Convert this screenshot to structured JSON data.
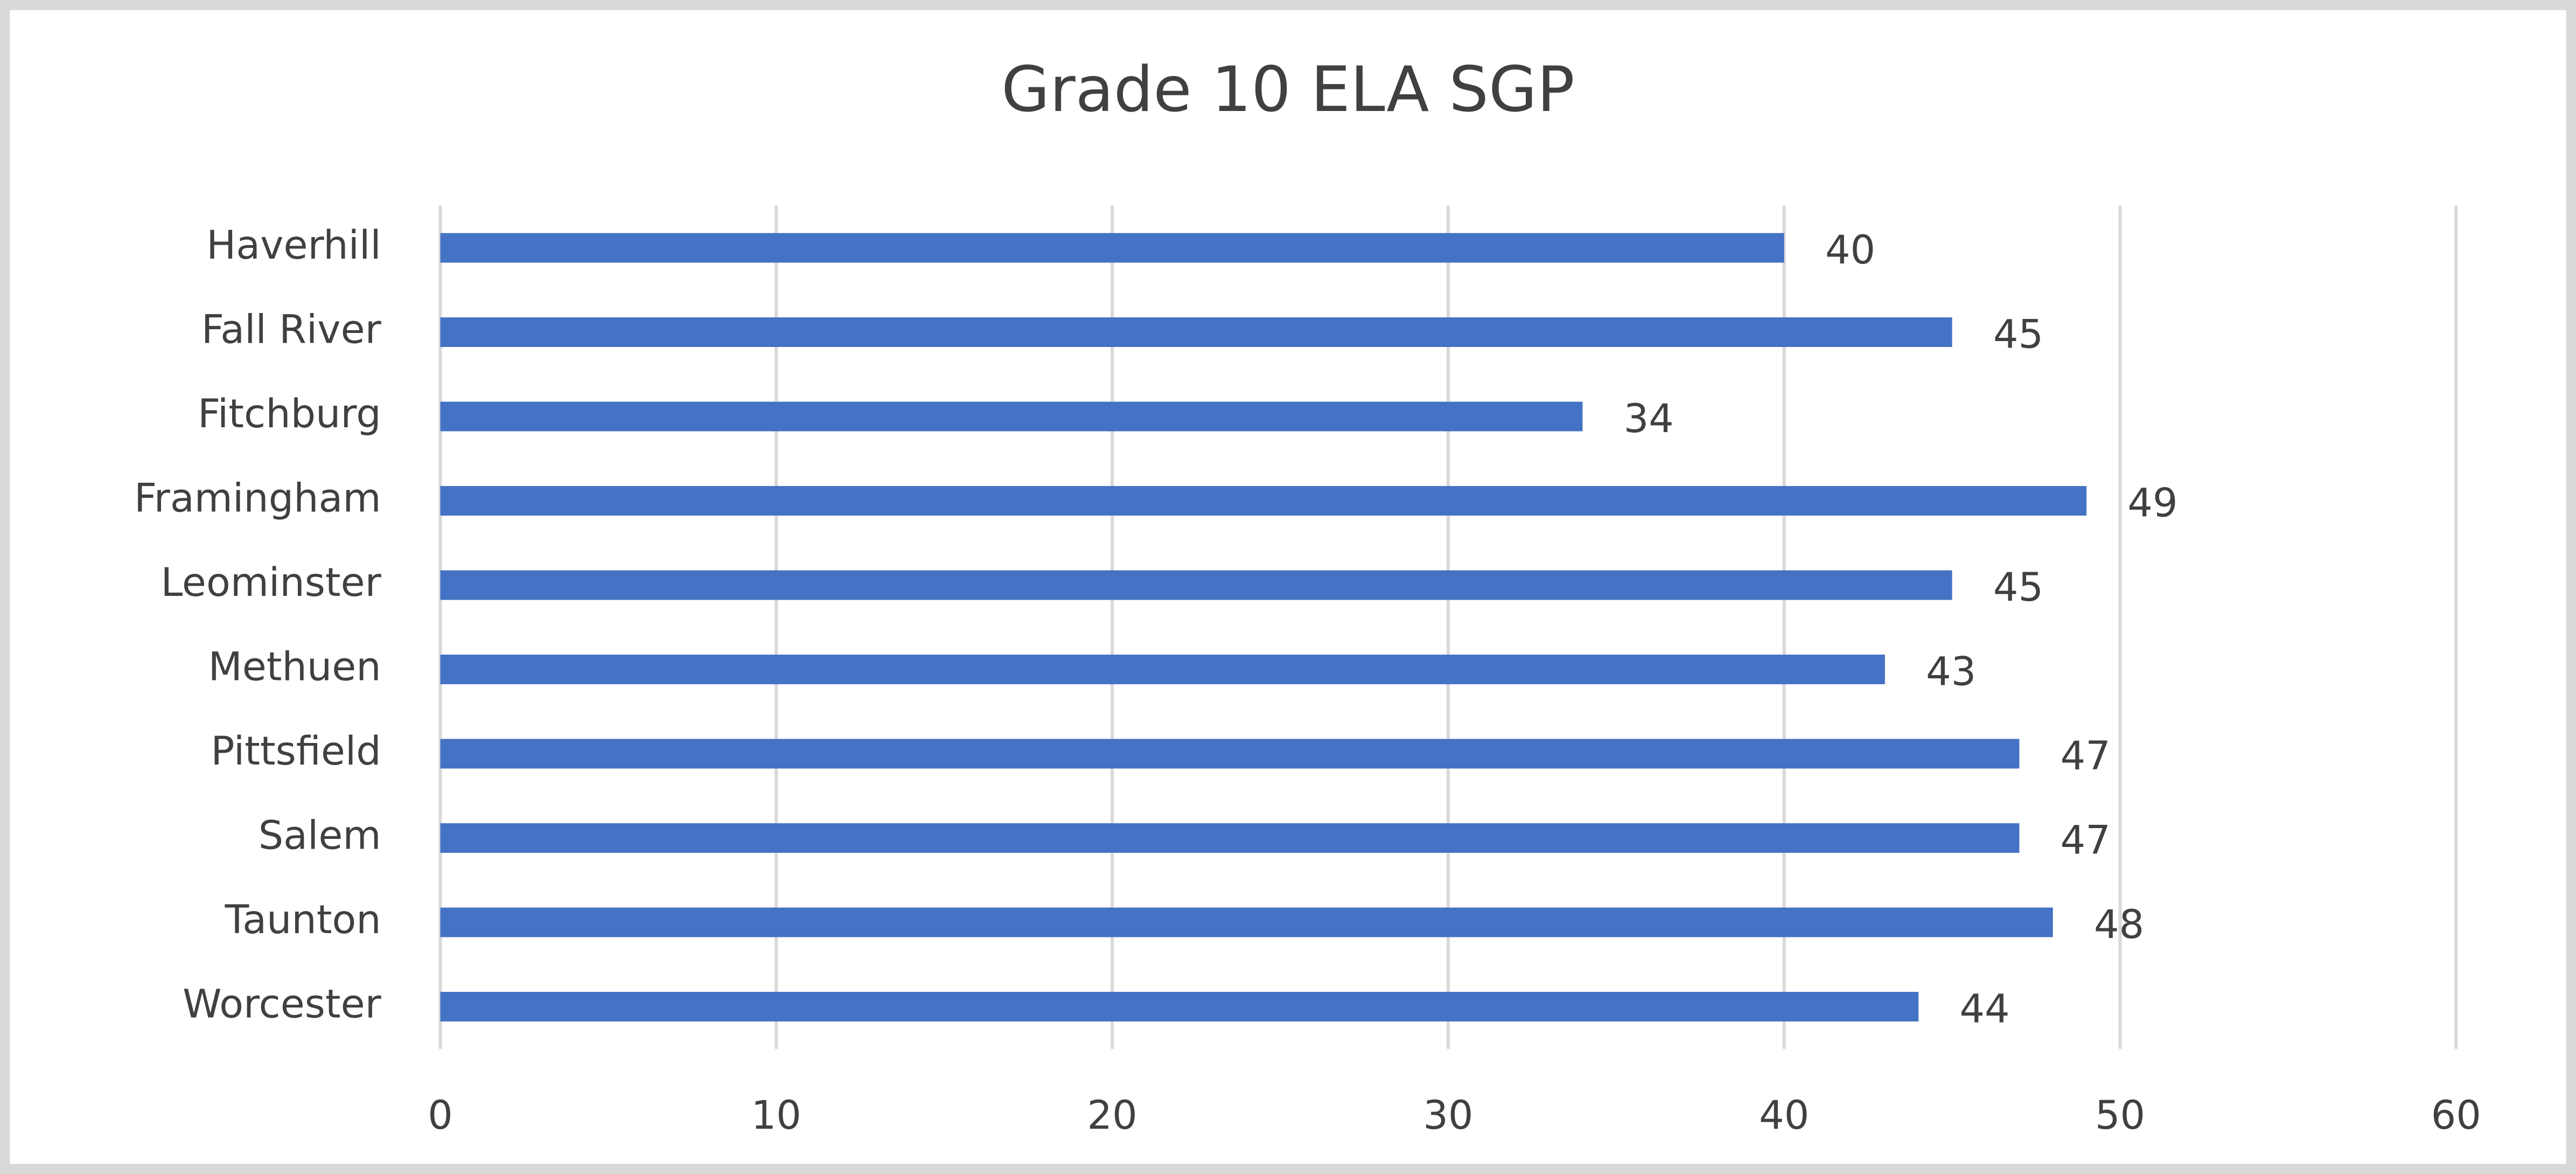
{
  "chart_data": {
    "type": "bar",
    "orientation": "horizontal",
    "title": "Grade 10 ELA SGP",
    "categories": [
      "Haverhill",
      "Fall River",
      "Fitchburg",
      "Framingham",
      "Leominster",
      "Methuen",
      "Pittsfield",
      "Salem",
      "Taunton",
      "Worcester"
    ],
    "values": [
      40,
      45,
      34,
      49,
      45,
      43,
      47,
      47,
      48,
      44
    ],
    "color": "#4472c4",
    "xlim": [
      0,
      60
    ],
    "xticks": [
      0,
      10,
      20,
      30,
      40,
      50,
      60
    ],
    "grid": true,
    "data_labels": true
  }
}
